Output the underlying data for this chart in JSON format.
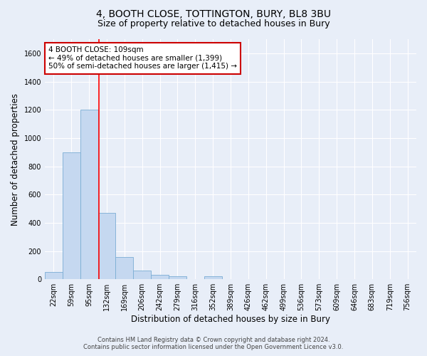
{
  "title1": "4, BOOTH CLOSE, TOTTINGTON, BURY, BL8 3BU",
  "title2": "Size of property relative to detached houses in Bury",
  "xlabel": "Distribution of detached houses by size in Bury",
  "ylabel": "Number of detached properties",
  "bar_labels": [
    "22sqm",
    "59sqm",
    "95sqm",
    "132sqm",
    "169sqm",
    "206sqm",
    "242sqm",
    "279sqm",
    "316sqm",
    "352sqm",
    "389sqm",
    "426sqm",
    "462sqm",
    "499sqm",
    "536sqm",
    "573sqm",
    "609sqm",
    "646sqm",
    "683sqm",
    "719sqm",
    "756sqm"
  ],
  "bar_values": [
    50,
    900,
    1200,
    470,
    155,
    60,
    30,
    20,
    0,
    20,
    0,
    0,
    0,
    0,
    0,
    0,
    0,
    0,
    0,
    0,
    0
  ],
  "bar_color": "#c5d8f0",
  "bar_edge_color": "#7aadd4",
  "ylim": [
    0,
    1700
  ],
  "yticks": [
    0,
    200,
    400,
    600,
    800,
    1000,
    1200,
    1400,
    1600
  ],
  "red_line_x": 2.55,
  "annotation_text": "4 BOOTH CLOSE: 109sqm\n← 49% of detached houses are smaller (1,399)\n50% of semi-detached houses are larger (1,415) →",
  "annotation_box_color": "#ffffff",
  "annotation_box_edge": "#cc0000",
  "footer1": "Contains HM Land Registry data © Crown copyright and database right 2024.",
  "footer2": "Contains public sector information licensed under the Open Government Licence v3.0.",
  "bg_color": "#e8eef8",
  "plot_bg_color": "#e8eef8",
  "grid_color": "#ffffff",
  "title1_fontsize": 10,
  "title2_fontsize": 9,
  "xlabel_fontsize": 8.5,
  "ylabel_fontsize": 8.5,
  "footer_fontsize": 6,
  "tick_fontsize": 7,
  "annot_fontsize": 7.5
}
